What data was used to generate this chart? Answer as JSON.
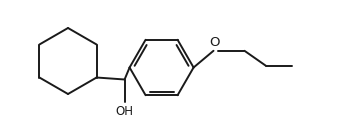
{
  "bg_color": "#ffffff",
  "line_color": "#1a1a1a",
  "line_width": 1.4,
  "font_size": 8.5,
  "figsize": [
    3.54,
    1.37
  ],
  "dpi": 100,
  "xlim": [
    0,
    354
  ],
  "ylim": [
    0,
    137
  ]
}
